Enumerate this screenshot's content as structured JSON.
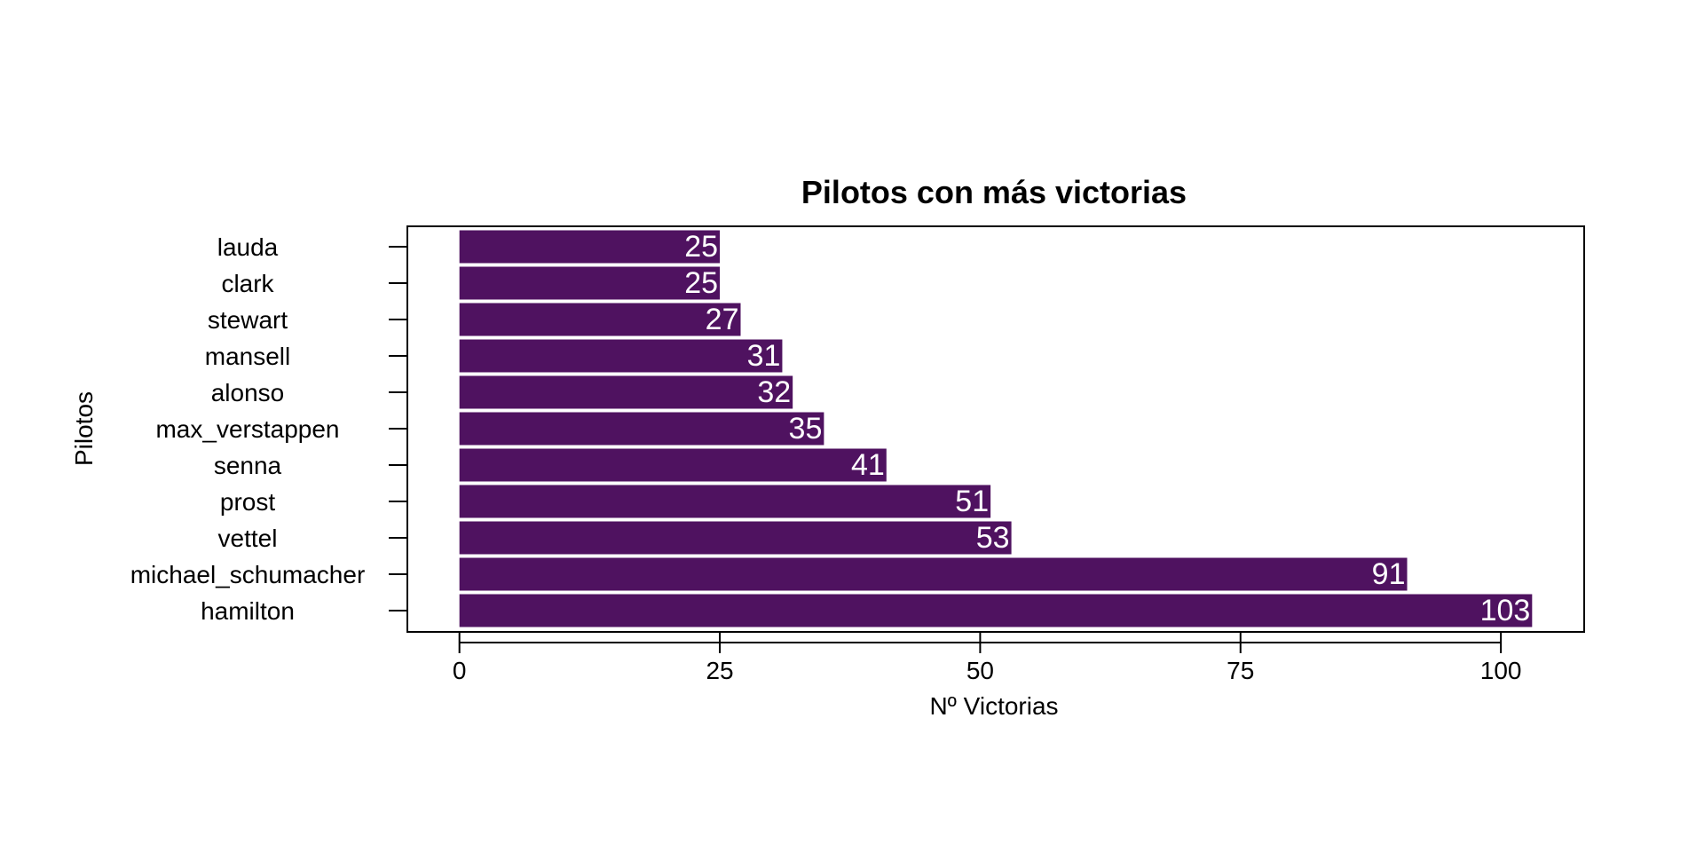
{
  "chart_data": {
    "type": "bar",
    "orientation": "horizontal",
    "title": "Pilotos con más victorias",
    "xlabel": "Nº Victorias",
    "ylabel": "Pilotos",
    "categories": [
      "lauda",
      "clark",
      "stewart",
      "mansell",
      "alonso",
      "max_verstappen",
      "senna",
      "prost",
      "vettel",
      "michael_schumacher",
      "hamilton"
    ],
    "values": [
      25,
      25,
      27,
      31,
      32,
      35,
      41,
      51,
      53,
      91,
      103
    ],
    "xticks": [
      0,
      25,
      50,
      75,
      100
    ],
    "xlim": [
      -5,
      108
    ],
    "bar_color": "#4f1260",
    "value_label_color": "#ffffff",
    "grid": false,
    "legend": "none"
  }
}
